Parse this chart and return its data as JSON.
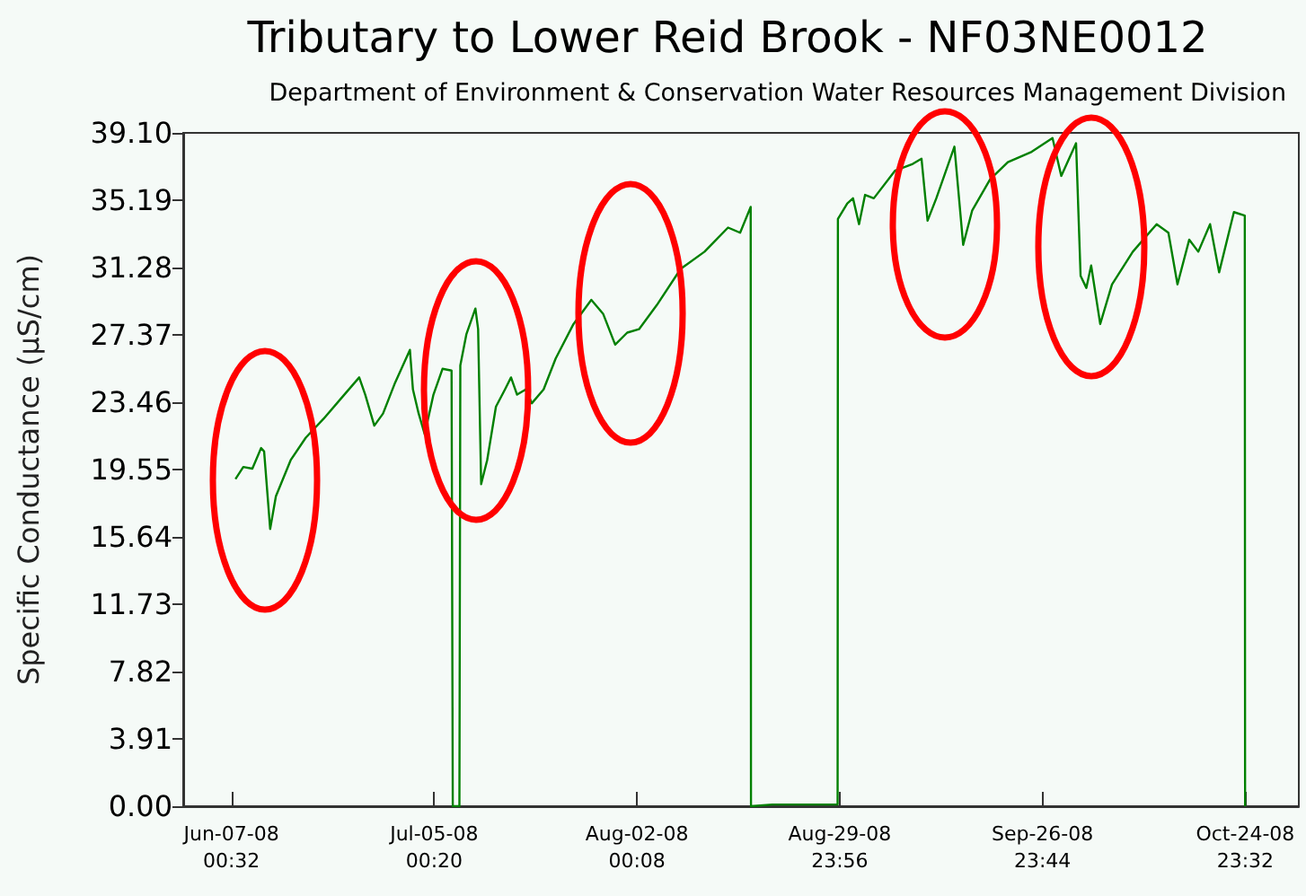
{
  "chart_data": {
    "type": "line",
    "title": "Tributary to Lower Reid Brook - NF03NE0012",
    "subtitle": "Department of Environment & Conservation Water Resources Management Division",
    "ylabel": "Specific Conductance (µS/cm)",
    "xlim": [
      "2008-05-31T09:00",
      "2008-11-01T09:00"
    ],
    "xticks": [
      {
        "value": "2008-06-07T00:32",
        "label": "Jun-07-08\n00:32"
      },
      {
        "value": "2008-07-05T00:20",
        "label": "Jul-05-08\n00:20"
      },
      {
        "value": "2008-08-02T00:08",
        "label": "Aug-02-08\n00:08"
      },
      {
        "value": "2008-08-29T23:56",
        "label": "Aug-29-08\n23:56"
      },
      {
        "value": "2008-09-26T23:44",
        "label": "Sep-26-08\n23:44"
      },
      {
        "value": "2008-10-24T23:32",
        "label": "Oct-24-08\n23:32"
      }
    ],
    "ylim": [
      0,
      39.1
    ],
    "yticks": [
      {
        "value": 0,
        "label": "0.00"
      },
      3.91,
      7.82,
      11.73,
      15.64,
      19.55,
      23.46,
      27.37,
      31.28,
      35.19,
      {
        "value": 39.1,
        "label": "39.10"
      }
    ],
    "grid": false,
    "marker": "none",
    "line_style": "solid",
    "x": [
      "2008-06-07T14:00",
      "2008-06-08T16:00",
      "2008-06-09T22:00",
      "2008-06-11T03:00",
      "2008-06-11T13:00",
      "2008-06-12T09:00",
      "2008-06-13T04:00",
      "2008-06-15T05:00",
      "2008-06-17T07:00",
      "2008-06-19T18:00",
      "2008-06-22T05:00",
      "2008-06-24T16:00",
      "2008-06-25T12:00",
      "2008-06-26T18:00",
      "2008-06-27T23:00",
      "2008-06-29T15:00",
      "2008-07-01T16:00",
      "2008-07-02T02:00",
      "2008-07-02T21:00",
      "2008-07-03T17:00",
      "2008-07-04T22:00",
      "2008-07-06T04:00",
      "2008-07-07T10:00",
      "2008-07-07T14:00",
      "2008-07-08T12:00",
      "2008-07-08T15:00",
      "2008-07-09T11:00",
      "2008-07-10T17:00",
      "2008-07-11T02:00",
      "2008-07-11T12:00",
      "2008-07-12T08:00",
      "2008-07-13T13:00",
      "2008-07-14T19:00",
      "2008-07-15T15:00",
      "2008-07-16T11:00",
      "2008-07-17T16:00",
      "2008-07-18T12:00",
      "2008-07-20T03:00",
      "2008-07-21T19:00",
      "2008-07-24T06:00",
      "2008-07-26T17:00",
      "2008-07-28T08:00",
      "2008-07-30T00:00",
      "2008-07-31T16:00",
      "2008-08-02T07:00",
      "2008-08-04T18:00",
      "2008-08-08T01:00",
      "2008-08-11T08:00",
      "2008-08-14T14:00",
      "2008-08-16T06:00",
      "2008-08-17T17:00",
      "2008-08-17T18:00",
      "2008-08-20T16:00",
      "2008-08-29T17:00",
      "2008-08-29T18:00",
      "2008-08-31T01:00",
      "2008-08-31T20:00",
      "2008-09-01T16:00",
      "2008-09-02T12:00",
      "2008-09-03T17:00",
      "2008-09-06T15:00",
      "2008-09-09T02:00",
      "2008-09-10T07:00",
      "2008-09-11T03:00",
      "2008-09-12T08:00",
      "2008-09-14T20:00",
      "2008-09-16T01:00",
      "2008-09-17T07:00",
      "2008-09-19T18:00",
      "2008-09-22T05:00",
      "2008-09-25T12:00",
      "2008-09-28T09:00",
      "2008-09-29T14:00",
      "2008-10-01T15:00",
      "2008-10-02T06:00",
      "2008-10-03T01:00",
      "2008-10-03T17:00",
      "2008-10-04T23:00",
      "2008-10-06T14:00",
      "2008-10-09T11:00",
      "2008-10-12T18:00",
      "2008-10-14T09:00",
      "2008-10-15T15:00",
      "2008-10-17T06:00",
      "2008-10-18T12:00",
      "2008-10-20T03:00",
      "2008-10-21T09:00",
      "2008-10-23T10:00",
      "2008-10-24T22:00",
      "2008-10-24T23:00"
    ],
    "series": [
      {
        "color": "#008000",
        "values": [
          19.0,
          19.7,
          19.6,
          20.8,
          20.6,
          16.1,
          18.0,
          20.1,
          21.4,
          22.5,
          23.7,
          24.9,
          23.9,
          22.1,
          22.8,
          24.6,
          26.5,
          24.2,
          22.8,
          21.6,
          23.9,
          25.4,
          25.3,
          0,
          0,
          25.6,
          27.4,
          28.9,
          27.7,
          18.7,
          20.1,
          23.2,
          24.2,
          24.9,
          23.9,
          24.2,
          23.4,
          24.2,
          26.0,
          28.0,
          29.4,
          28.6,
          26.8,
          27.5,
          27.7,
          29.1,
          31.2,
          32.2,
          33.6,
          33.3,
          34.8,
          0,
          0.1,
          0.1,
          34.1,
          35.0,
          35.3,
          33.8,
          35.5,
          35.3,
          36.9,
          37.3,
          37.6,
          34.0,
          35.3,
          38.3,
          32.6,
          34.6,
          36.4,
          37.4,
          38.0,
          38.8,
          36.6,
          38.5,
          30.8,
          30.1,
          31.4,
          28.0,
          30.3,
          32.2,
          33.8,
          33.3,
          30.3,
          32.9,
          32.2,
          33.8,
          31.0,
          34.5,
          34.3,
          0
        ]
      }
    ]
  }
}
